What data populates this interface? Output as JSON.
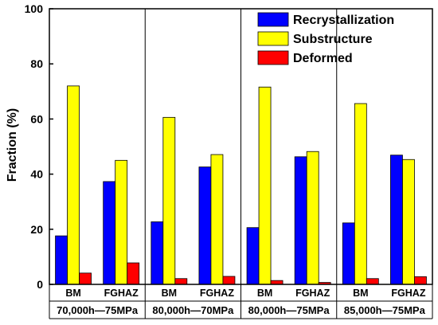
{
  "chart_data": {
    "type": "bar",
    "ylabel": "Fraction (%)",
    "ylim": [
      0,
      100
    ],
    "yticks": [
      0,
      20,
      40,
      60,
      80,
      100
    ],
    "grid": false,
    "legend_placement": "top-right",
    "categories": [
      "BM",
      "FGHAZ",
      "BM",
      "FGHAZ",
      "BM",
      "FGHAZ",
      "BM",
      "FGHAZ"
    ],
    "groups": [
      {
        "label": "70,000h—75MPa",
        "categories": [
          "BM",
          "FGHAZ"
        ]
      },
      {
        "label": "80,000h—70MPa",
        "categories": [
          "BM",
          "FGHAZ"
        ]
      },
      {
        "label": "80,000h—75MPa",
        "categories": [
          "BM",
          "FGHAZ"
        ]
      },
      {
        "label": "85,000h—75MPa",
        "categories": [
          "BM",
          "FGHAZ"
        ]
      }
    ],
    "series": [
      {
        "name": "Recrystallization",
        "color": "#0000ff",
        "values": [
          17.6,
          37.3,
          22.7,
          42.6,
          20.6,
          46.3,
          22.3,
          46.9
        ]
      },
      {
        "name": "Substructure",
        "color": "#ffff00",
        "values": [
          72.0,
          45.0,
          60.6,
          47.1,
          71.6,
          48.2,
          65.6,
          45.3
        ]
      },
      {
        "name": "Deformed",
        "color": "#ff0000",
        "values": [
          4.1,
          7.8,
          2.1,
          2.9,
          1.4,
          0.7,
          2.1,
          2.8
        ]
      }
    ]
  }
}
